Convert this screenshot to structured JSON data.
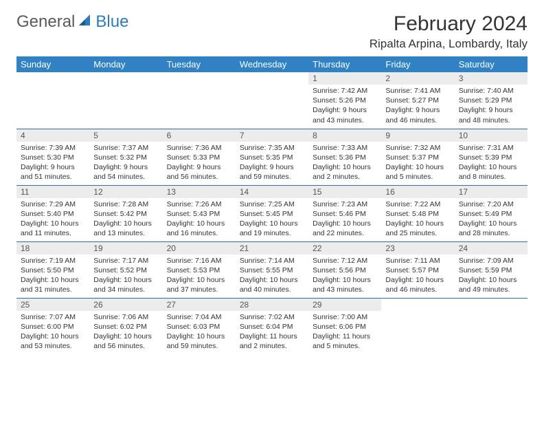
{
  "brand": {
    "part1": "General",
    "part2": "Blue"
  },
  "title": "February 2024",
  "location": "Ripalta Arpina, Lombardy, Italy",
  "colors": {
    "header_bg": "#3082c4",
    "header_text": "#ffffff",
    "daynum_bg": "#ececec",
    "rule": "#2b6fa8",
    "brand_gray": "#5a5a5a",
    "brand_blue": "#2b7bbf"
  },
  "weekdays": [
    "Sunday",
    "Monday",
    "Tuesday",
    "Wednesday",
    "Thursday",
    "Friday",
    "Saturday"
  ],
  "weeks": [
    [
      null,
      null,
      null,
      null,
      {
        "n": "1",
        "sunrise": "7:42 AM",
        "sunset": "5:26 PM",
        "daylight": "9 hours and 43 minutes."
      },
      {
        "n": "2",
        "sunrise": "7:41 AM",
        "sunset": "5:27 PM",
        "daylight": "9 hours and 46 minutes."
      },
      {
        "n": "3",
        "sunrise": "7:40 AM",
        "sunset": "5:29 PM",
        "daylight": "9 hours and 48 minutes."
      }
    ],
    [
      {
        "n": "4",
        "sunrise": "7:39 AM",
        "sunset": "5:30 PM",
        "daylight": "9 hours and 51 minutes."
      },
      {
        "n": "5",
        "sunrise": "7:37 AM",
        "sunset": "5:32 PM",
        "daylight": "9 hours and 54 minutes."
      },
      {
        "n": "6",
        "sunrise": "7:36 AM",
        "sunset": "5:33 PM",
        "daylight": "9 hours and 56 minutes."
      },
      {
        "n": "7",
        "sunrise": "7:35 AM",
        "sunset": "5:35 PM",
        "daylight": "9 hours and 59 minutes."
      },
      {
        "n": "8",
        "sunrise": "7:33 AM",
        "sunset": "5:36 PM",
        "daylight": "10 hours and 2 minutes."
      },
      {
        "n": "9",
        "sunrise": "7:32 AM",
        "sunset": "5:37 PM",
        "daylight": "10 hours and 5 minutes."
      },
      {
        "n": "10",
        "sunrise": "7:31 AM",
        "sunset": "5:39 PM",
        "daylight": "10 hours and 8 minutes."
      }
    ],
    [
      {
        "n": "11",
        "sunrise": "7:29 AM",
        "sunset": "5:40 PM",
        "daylight": "10 hours and 11 minutes."
      },
      {
        "n": "12",
        "sunrise": "7:28 AM",
        "sunset": "5:42 PM",
        "daylight": "10 hours and 13 minutes."
      },
      {
        "n": "13",
        "sunrise": "7:26 AM",
        "sunset": "5:43 PM",
        "daylight": "10 hours and 16 minutes."
      },
      {
        "n": "14",
        "sunrise": "7:25 AM",
        "sunset": "5:45 PM",
        "daylight": "10 hours and 19 minutes."
      },
      {
        "n": "15",
        "sunrise": "7:23 AM",
        "sunset": "5:46 PM",
        "daylight": "10 hours and 22 minutes."
      },
      {
        "n": "16",
        "sunrise": "7:22 AM",
        "sunset": "5:48 PM",
        "daylight": "10 hours and 25 minutes."
      },
      {
        "n": "17",
        "sunrise": "7:20 AM",
        "sunset": "5:49 PM",
        "daylight": "10 hours and 28 minutes."
      }
    ],
    [
      {
        "n": "18",
        "sunrise": "7:19 AM",
        "sunset": "5:50 PM",
        "daylight": "10 hours and 31 minutes."
      },
      {
        "n": "19",
        "sunrise": "7:17 AM",
        "sunset": "5:52 PM",
        "daylight": "10 hours and 34 minutes."
      },
      {
        "n": "20",
        "sunrise": "7:16 AM",
        "sunset": "5:53 PM",
        "daylight": "10 hours and 37 minutes."
      },
      {
        "n": "21",
        "sunrise": "7:14 AM",
        "sunset": "5:55 PM",
        "daylight": "10 hours and 40 minutes."
      },
      {
        "n": "22",
        "sunrise": "7:12 AM",
        "sunset": "5:56 PM",
        "daylight": "10 hours and 43 minutes."
      },
      {
        "n": "23",
        "sunrise": "7:11 AM",
        "sunset": "5:57 PM",
        "daylight": "10 hours and 46 minutes."
      },
      {
        "n": "24",
        "sunrise": "7:09 AM",
        "sunset": "5:59 PM",
        "daylight": "10 hours and 49 minutes."
      }
    ],
    [
      {
        "n": "25",
        "sunrise": "7:07 AM",
        "sunset": "6:00 PM",
        "daylight": "10 hours and 53 minutes."
      },
      {
        "n": "26",
        "sunrise": "7:06 AM",
        "sunset": "6:02 PM",
        "daylight": "10 hours and 56 minutes."
      },
      {
        "n": "27",
        "sunrise": "7:04 AM",
        "sunset": "6:03 PM",
        "daylight": "10 hours and 59 minutes."
      },
      {
        "n": "28",
        "sunrise": "7:02 AM",
        "sunset": "6:04 PM",
        "daylight": "11 hours and 2 minutes."
      },
      {
        "n": "29",
        "sunrise": "7:00 AM",
        "sunset": "6:06 PM",
        "daylight": "11 hours and 5 minutes."
      },
      null,
      null
    ]
  ],
  "labels": {
    "sunrise": "Sunrise: ",
    "sunset": "Sunset: ",
    "daylight": "Daylight: "
  }
}
